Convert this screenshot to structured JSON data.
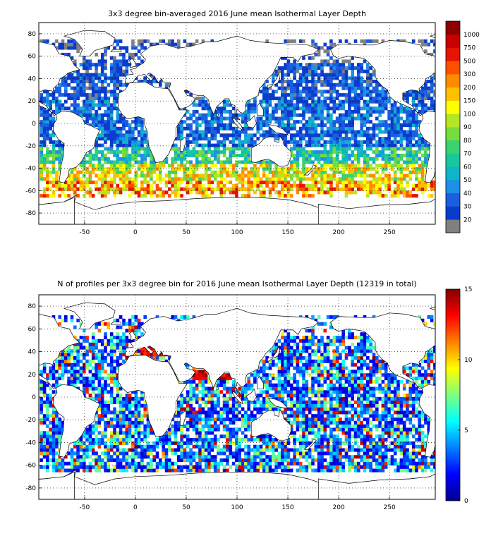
{
  "chart_data": [
    {
      "type": "heatmap",
      "title": "3x3 degree bin-averaged 2016 June mean Isothermal Layer Depth",
      "x_ticks": [
        -50,
        0,
        50,
        100,
        150,
        200,
        250
      ],
      "y_ticks": [
        80,
        60,
        40,
        20,
        0,
        -20,
        -40,
        -60,
        -80
      ],
      "xlim": [
        -95,
        295
      ],
      "ylim": [
        -90,
        90
      ],
      "grid": true,
      "colorbar": {
        "labels": [
          "20",
          "30",
          "40",
          "50",
          "60",
          "70",
          "80",
          "90",
          "100",
          "150",
          "200",
          "300",
          "500",
          "750",
          "1000"
        ],
        "colors": [
          "#808080",
          "#0a3ccc",
          "#1a5fe0",
          "#1e90e6",
          "#10b4c8",
          "#18c89a",
          "#3cd26e",
          "#78dc3c",
          "#b4e628",
          "#ffff00",
          "#ffc000",
          "#ff8c00",
          "#ff5000",
          "#e61400",
          "#c80000",
          "#8c0000"
        ]
      },
      "bin_size_deg": 3,
      "ild_by_latitude_band": [
        {
          "lat_range": [
            60,
            75
          ],
          "typical_value": "20-40 (gray land/ice bins where <20)"
        },
        {
          "lat_range": [
            20,
            60
          ],
          "typical_value": "20-40"
        },
        {
          "lat_range": [
            -20,
            20
          ],
          "typical_value": "20-60"
        },
        {
          "lat_range": [
            -35,
            -20
          ],
          "typical_value": "50-90"
        },
        {
          "lat_range": [
            -50,
            -35
          ],
          "typical_value": "80-200"
        },
        {
          "lat_range": [
            -65,
            -50
          ],
          "typical_value": "100-500"
        }
      ]
    },
    {
      "type": "heatmap",
      "title": "N of profiles per 3x3 degree bin for 2016 June mean Isothermal Layer Depth  (12319 in total)",
      "x_ticks": [
        -50,
        0,
        50,
        100,
        150,
        200,
        250
      ],
      "y_ticks": [
        80,
        60,
        40,
        20,
        0,
        -20,
        -40,
        -60,
        -80
      ],
      "xlim": [
        -95,
        295
      ],
      "ylim": [
        -90,
        90
      ],
      "grid": true,
      "colorbar": {
        "ticks": [
          0,
          5,
          10,
          15
        ],
        "range": [
          0,
          15
        ],
        "colormap": "jet"
      },
      "total_profiles": 12319,
      "hotspots": [
        {
          "region": "Mediterranean Sea",
          "approx_lon": [
            5,
            35
          ],
          "approx_lat": [
            35,
            45
          ],
          "count": "13-15"
        },
        {
          "region": "Arabian Sea",
          "approx_lon": [
            55,
            70
          ],
          "approx_lat": [
            15,
            25
          ],
          "count": "13-15"
        },
        {
          "region": "Bay of Bengal",
          "approx_lon": [
            80,
            95
          ],
          "approx_lat": [
            15,
            22
          ],
          "count": "13-15"
        }
      ]
    }
  ]
}
